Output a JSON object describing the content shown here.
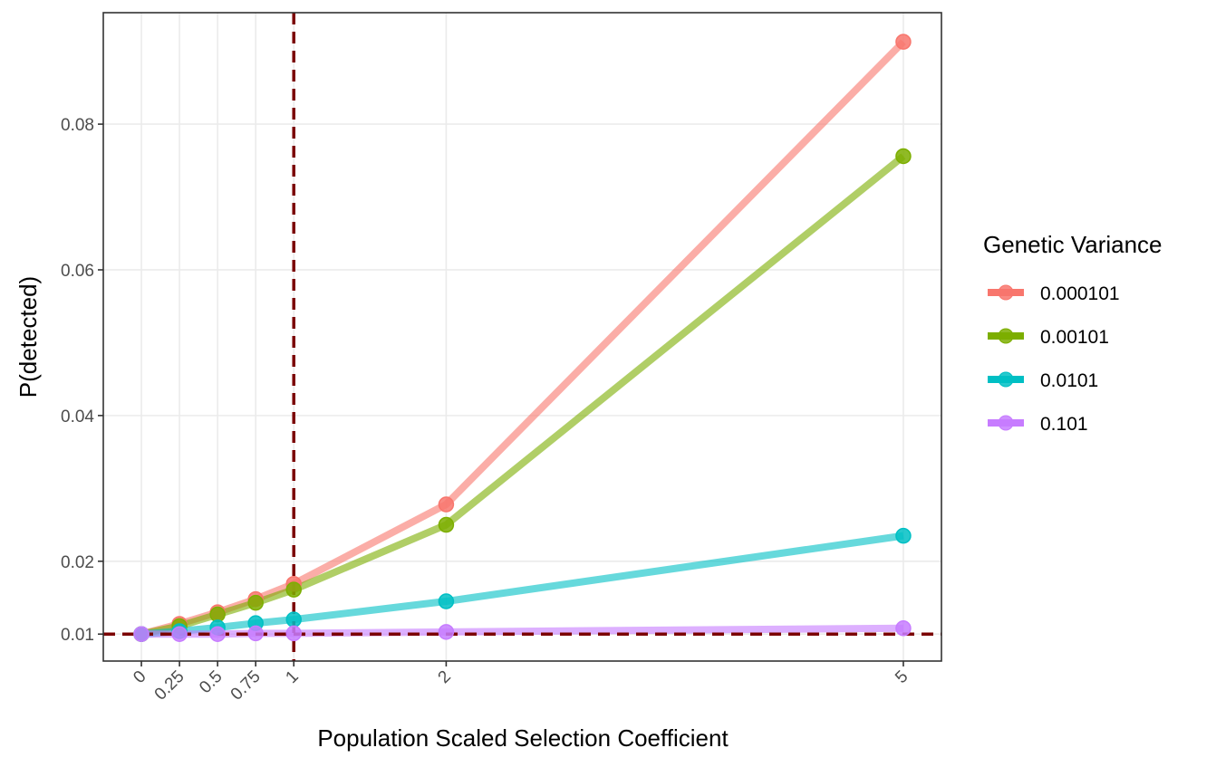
{
  "chart_data": {
    "type": "line",
    "xlabel": "Population Scaled Selection Coefficient",
    "ylabel": "P(detected)",
    "x": [
      0,
      0.25,
      0.5,
      0.75,
      1,
      2,
      5
    ],
    "x_tick_labels": [
      "0",
      "0.25",
      "0.5",
      "0.75",
      "1",
      "2",
      "5"
    ],
    "highlight_tick": "1",
    "highlight_tick_color": "#ff0000",
    "y_ticks": [
      0.01,
      0.02,
      0.04,
      0.06,
      0.08
    ],
    "y_tick_labels": [
      "0.01",
      "0.02",
      "0.04",
      "0.06",
      "0.08"
    ],
    "xlim": [
      -0.25,
      5.25
    ],
    "ylim": [
      0.0063,
      0.0953
    ],
    "grid": true,
    "legend_title": "Genetic Variance",
    "legend_position": "right",
    "reference_lines": {
      "vertical_x": 1,
      "horizontal_y": 0.01,
      "color": "#7b0000",
      "style": "dashed"
    },
    "series": [
      {
        "name": "0.000101",
        "color": "#f8766d",
        "values": [
          0.01,
          0.0114,
          0.013,
          0.0148,
          0.0169,
          0.0278,
          0.0913
        ]
      },
      {
        "name": "0.00101",
        "color": "#7cae00",
        "values": [
          0.01,
          0.0111,
          0.0127,
          0.0143,
          0.0161,
          0.025,
          0.0756
        ]
      },
      {
        "name": "0.0101",
        "color": "#00bfc4",
        "values": [
          0.01,
          0.0104,
          0.0109,
          0.0115,
          0.012,
          0.0145,
          0.0235
        ]
      },
      {
        "name": "0.101",
        "color": "#c77cff",
        "values": [
          0.01,
          0.01,
          0.01,
          0.0101,
          0.0101,
          0.0103,
          0.0108
        ]
      }
    ]
  }
}
